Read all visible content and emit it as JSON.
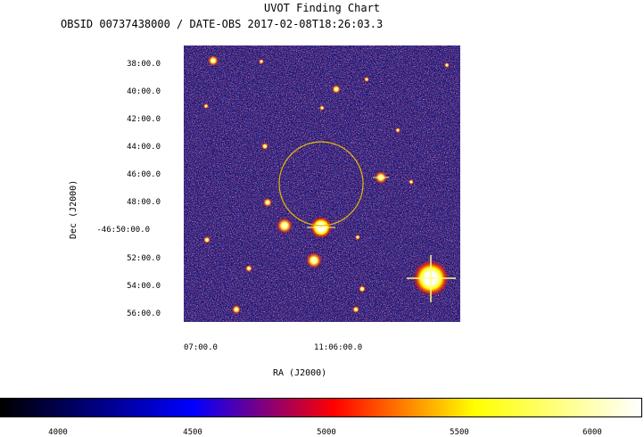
{
  "header": {
    "title": "UVOT Finding Chart",
    "subtitle": "OBSID 00737438000 / DATE-OBS 2017-02-08T18:26:03.3"
  },
  "axes": {
    "ylabel": "Dec (J2000)",
    "xlabel": "RA (J2000)",
    "dec_ticks": [
      "38:00.0",
      "40:00.0",
      "42:00.0",
      "44:00.0",
      "46:00.0",
      "48:00.0",
      "-46:50:00.0",
      "52:00.0",
      "54:00.0",
      "56:00.0"
    ],
    "ra_ticks": [
      "07:00.0",
      "11:06:00.0"
    ]
  },
  "colorbar": {
    "labels": [
      "4000",
      "4500",
      "5000",
      "5500",
      "6000"
    ],
    "colors": [
      "#000000",
      "#0000ff",
      "#ff0000",
      "#ffff00",
      "#ffffff"
    ]
  },
  "overlay": {
    "circle_color": "#e6b800"
  }
}
